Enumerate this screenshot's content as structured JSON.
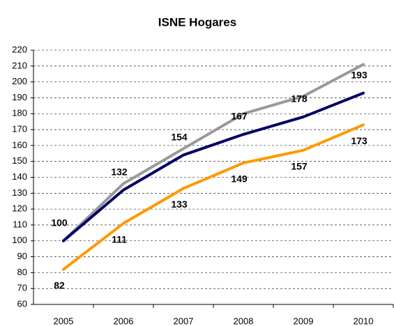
{
  "chart_data": {
    "type": "line",
    "title": "ISNE Hogares",
    "categories": [
      "2005",
      "2006",
      "2007",
      "2008",
      "2009",
      "2010"
    ],
    "series": [
      {
        "color": "#999999",
        "values": [
          100,
          136,
          158,
          180,
          191,
          211
        ],
        "data_labels": false
      },
      {
        "color": "#000066",
        "values": [
          100,
          132,
          154,
          167,
          178,
          193
        ],
        "data_labels": true,
        "label_position": "above"
      },
      {
        "color": "#ff9900",
        "values": [
          82,
          111,
          133,
          149,
          157,
          173
        ],
        "data_labels": true,
        "label_position": "below"
      }
    ],
    "ylim": [
      60,
      220
    ],
    "yticks": [
      60,
      70,
      80,
      90,
      100,
      110,
      120,
      130,
      140,
      150,
      160,
      170,
      180,
      190,
      200,
      210,
      220
    ],
    "grid": true
  }
}
